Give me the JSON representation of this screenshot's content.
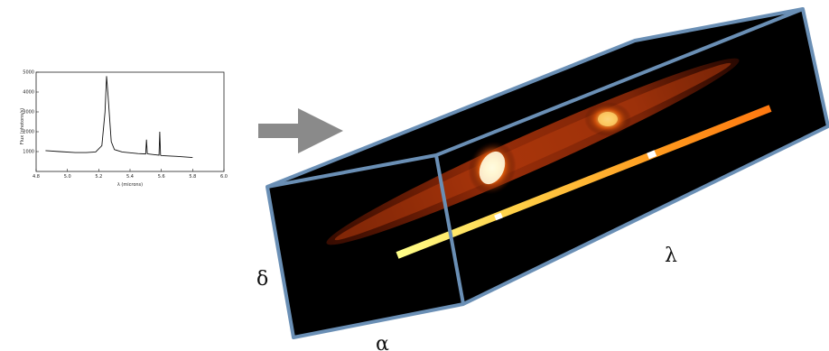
{
  "spectrum": {
    "ylabel": "Flux (photons/s)",
    "xlabel": "λ (microns)",
    "x_ticks": [
      "4.8",
      "5.0",
      "5.2",
      "5.4",
      "5.6",
      "5.8",
      "6.0"
    ],
    "y_ticks": [
      "1000",
      "2000",
      "3000",
      "4000",
      "5000"
    ],
    "xlim": [
      4.8,
      6.0
    ],
    "ylim": [
      0,
      5000
    ]
  },
  "chart_data": {
    "type": "line",
    "title": "",
    "xlabel": "λ (microns)",
    "ylabel": "Flux (photons/s)",
    "xlim": [
      4.8,
      6.0
    ],
    "ylim": [
      0,
      5000
    ],
    "series": [
      {
        "x": [
          4.86,
          4.95,
          5.05,
          5.12,
          5.18,
          5.22,
          5.24,
          5.25,
          5.26,
          5.27,
          5.28,
          5.3,
          5.35,
          5.45,
          5.5,
          5.505,
          5.51,
          5.515,
          5.55,
          5.585,
          5.59,
          5.595,
          5.6,
          5.7,
          5.8
        ],
        "y": [
          1050,
          1000,
          950,
          950,
          980,
          1300,
          3000,
          4800,
          3800,
          2600,
          1500,
          1100,
          980,
          900,
          880,
          1600,
          900,
          880,
          850,
          820,
          2000,
          820,
          800,
          760,
          700
        ]
      }
    ]
  },
  "cube": {
    "axis_alpha": "α",
    "axis_delta": "δ",
    "axis_lambda": "λ",
    "edge_color": "#6a8fb5",
    "background": "#000000"
  },
  "arrow": {
    "color": "#8a8a8a"
  }
}
